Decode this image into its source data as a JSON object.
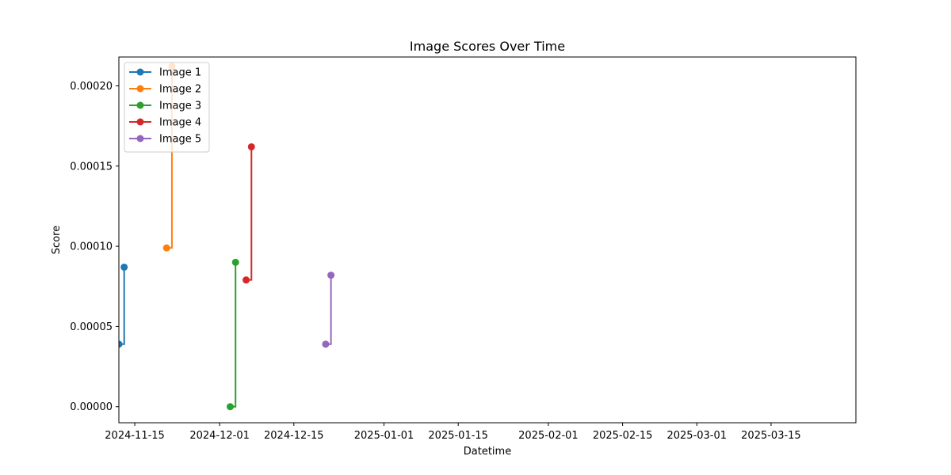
{
  "chart_data": {
    "type": "line",
    "title": "Image Scores Over Time",
    "xlabel": "Datetime",
    "ylabel": "Score",
    "x_axis_type": "date",
    "xlim": [
      "2024-11-12",
      "2025-03-31"
    ],
    "ylim": [
      -1e-05,
      0.000218
    ],
    "x_ticks": [
      "2024-11-15",
      "2024-12-01",
      "2024-12-15",
      "2025-01-01",
      "2025-01-15",
      "2025-02-01",
      "2025-02-15",
      "2025-03-01",
      "2025-03-15"
    ],
    "y_ticks": [
      0,
      5e-05,
      0.0001,
      0.00015,
      0.0002
    ],
    "y_tick_labels": [
      "0.00000",
      "0.00005",
      "0.00010",
      "0.00015",
      "0.00020"
    ],
    "grid": false,
    "legend_position": "upper-left",
    "series": [
      {
        "name": "Image 1",
        "color": "#1f77b4",
        "points": [
          {
            "x": "2024-11-12",
            "y": 3.9e-05
          },
          {
            "x": "2024-11-13",
            "y": 8.7e-05
          }
        ]
      },
      {
        "name": "Image 2",
        "color": "#ff7f0e",
        "points": [
          {
            "x": "2024-11-21",
            "y": 9.9e-05
          },
          {
            "x": "2024-11-22",
            "y": 0.000212
          }
        ]
      },
      {
        "name": "Image 3",
        "color": "#2ca02c",
        "points": [
          {
            "x": "2024-12-03",
            "y": 0.0
          },
          {
            "x": "2024-12-04",
            "y": 9e-05
          }
        ]
      },
      {
        "name": "Image 4",
        "color": "#d62728",
        "points": [
          {
            "x": "2024-12-06",
            "y": 7.9e-05
          },
          {
            "x": "2024-12-07",
            "y": 0.000162
          }
        ]
      },
      {
        "name": "Image 5",
        "color": "#9467bd",
        "points": [
          {
            "x": "2024-12-21",
            "y": 3.9e-05
          },
          {
            "x": "2024-12-22",
            "y": 8.2e-05
          }
        ]
      }
    ]
  }
}
